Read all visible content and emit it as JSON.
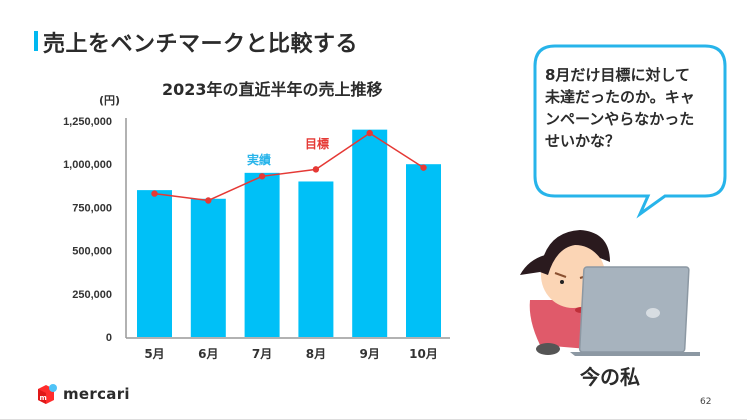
{
  "slide": {
    "title": "売上をベンチマークと比較する",
    "page_number": "62",
    "accent_color": "#00b8f0"
  },
  "speech_bubble": {
    "text": "8月だけ目標に対して未達だったのか。キャンペーンやらなかったせいかな？",
    "border_color": "#27b4ea"
  },
  "illustration": {
    "description": "woman frowning at laptop",
    "caption": "今の私"
  },
  "logo": {
    "text": "mercari",
    "icon": "mercari-box-icon"
  },
  "chart_data": {
    "type": "bar",
    "title": "2023年の直近半年の売上推移",
    "ylabel": "(円)",
    "xlabel": "",
    "categories": [
      "5月",
      "6月",
      "7月",
      "8月",
      "9月",
      "10月"
    ],
    "series": [
      {
        "name": "実績",
        "type": "bar",
        "color": "#00c0f7",
        "values": [
          850000,
          800000,
          950000,
          900000,
          1200000,
          1000000
        ]
      },
      {
        "name": "目標",
        "type": "line",
        "color": "#e53935",
        "values": [
          830000,
          790000,
          930000,
          970000,
          1180000,
          980000
        ]
      }
    ],
    "ylim": [
      0,
      1250000
    ],
    "yticks": [
      0,
      250000,
      500000,
      750000,
      1000000,
      1250000
    ],
    "ytick_labels": [
      "0",
      "250,000",
      "500,000",
      "750,000",
      "1,000,000",
      "1,250,000"
    ],
    "grid": false,
    "legend": {
      "position": "inline",
      "entries": [
        "実績",
        "目標"
      ]
    }
  }
}
